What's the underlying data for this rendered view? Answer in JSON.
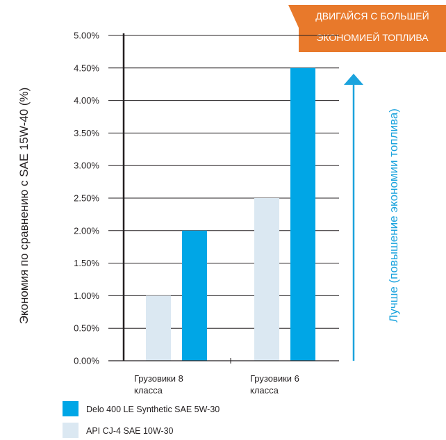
{
  "chart_data": {
    "type": "bar",
    "ylabel": "Экономия по сравнению с SAE 15W-40 (%)",
    "ylim": [
      0,
      5
    ],
    "yticks": [
      "0.00%",
      "0.50%",
      "1.00%",
      "1.50%",
      "2.00%",
      "2.50%",
      "3.00%",
      "3.50%",
      "4.00%",
      "4.50%",
      "5.00%"
    ],
    "categories": [
      {
        "line1": "Грузовики 8",
        "line2": "класса"
      },
      {
        "line1": "Грузовики 6",
        "line2": "класса"
      }
    ],
    "series": [
      {
        "name": "API CJ-4 SAE 10W-30",
        "color": "#dbe8f2",
        "values": [
          1.0,
          2.5
        ]
      },
      {
        "name": "Delo 400 LE Synthetic SAE 5W-30",
        "color": "#00a6e6",
        "values": [
          2.0,
          4.5
        ]
      }
    ],
    "legend_order": [
      1,
      0
    ],
    "grid": true,
    "annotation": {
      "text": "Лучше (повышение экономии топлива)",
      "color": "#1ba3dd"
    },
    "banner": {
      "line1": "ДВИГАЙСЯ С БОЛЬШЕЙ",
      "line2": "ЭКОНОМИЕЙ ТОПЛИВА",
      "color": "#e8792b"
    }
  }
}
